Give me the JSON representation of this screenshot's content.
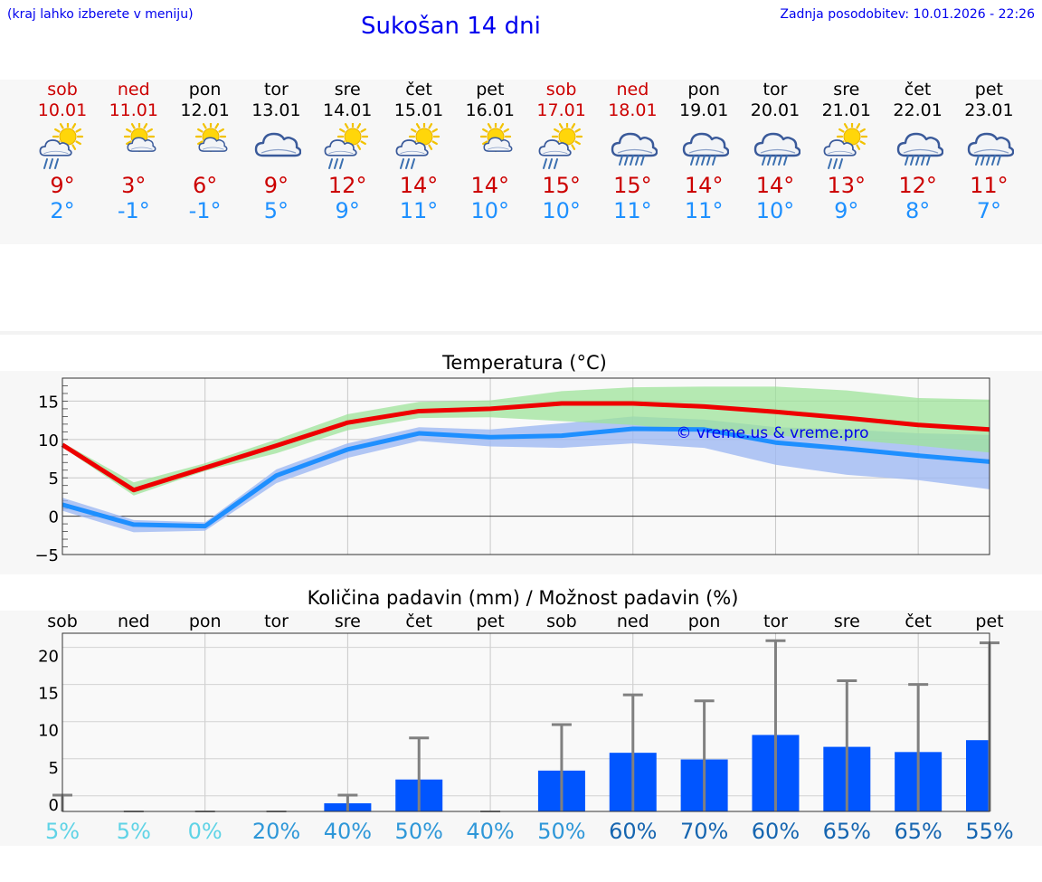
{
  "header": {
    "menu_hint": "(kraj lahko izberete v meniju)",
    "title": "Sukošan 14 dni",
    "updated": "Zadnja posodobitev: 10.01.2026 - 22:26"
  },
  "colors": {
    "max": "#cc0000",
    "min": "#1e90ff",
    "title": "#0000ee",
    "bar": "#0055ff"
  },
  "days": [
    {
      "name": "sob",
      "date": "10.01",
      "weekend": true,
      "icon": "sun-cloud-rain-icon",
      "max": "9°",
      "min": "2°"
    },
    {
      "name": "ned",
      "date": "11.01",
      "weekend": true,
      "icon": "sun-cloud-icon",
      "max": "3°",
      "min": "-1°"
    },
    {
      "name": "pon",
      "date": "12.01",
      "weekend": false,
      "icon": "sun-cloud-icon",
      "max": "6°",
      "min": "-1°"
    },
    {
      "name": "tor",
      "date": "13.01",
      "weekend": false,
      "icon": "cloud-icon",
      "max": "9°",
      "min": "5°"
    },
    {
      "name": "sre",
      "date": "14.01",
      "weekend": false,
      "icon": "sun-cloud-rain-icon",
      "max": "12°",
      "min": "9°"
    },
    {
      "name": "čet",
      "date": "15.01",
      "weekend": false,
      "icon": "sun-cloud-rain-icon",
      "max": "14°",
      "min": "11°"
    },
    {
      "name": "pet",
      "date": "16.01",
      "weekend": false,
      "icon": "sun-cloud-icon",
      "max": "14°",
      "min": "10°"
    },
    {
      "name": "sob",
      "date": "17.01",
      "weekend": true,
      "icon": "sun-cloud-rain-icon",
      "max": "15°",
      "min": "10°"
    },
    {
      "name": "ned",
      "date": "18.01",
      "weekend": true,
      "icon": "cloud-rain-icon",
      "max": "15°",
      "min": "11°"
    },
    {
      "name": "pon",
      "date": "19.01",
      "weekend": false,
      "icon": "cloud-rain-icon",
      "max": "14°",
      "min": "11°"
    },
    {
      "name": "tor",
      "date": "20.01",
      "weekend": false,
      "icon": "cloud-rain-icon",
      "max": "14°",
      "min": "10°"
    },
    {
      "name": "sre",
      "date": "21.01",
      "weekend": false,
      "icon": "sun-cloud-rain-icon",
      "max": "13°",
      "min": "9°"
    },
    {
      "name": "čet",
      "date": "22.01",
      "weekend": false,
      "icon": "cloud-rain-icon",
      "max": "12°",
      "min": "8°"
    },
    {
      "name": "pet",
      "date": "23.01",
      "weekend": false,
      "icon": "cloud-rain-icon",
      "max": "11°",
      "min": "7°"
    }
  ],
  "chart_data": [
    {
      "type": "line",
      "title": "Temperatura (°C)",
      "watermark": "© vreme.us & vreme.pro",
      "x": [
        0,
        1,
        2,
        3,
        4,
        5,
        6,
        7,
        8,
        9,
        10,
        11,
        12,
        13
      ],
      "ylim": [
        -5,
        18
      ],
      "yticks": [
        -5,
        0,
        5,
        10,
        15
      ],
      "series": [
        {
          "name": "max",
          "color": "#ee0000",
          "values": [
            9.3,
            3.4,
            6.3,
            9.2,
            12.2,
            13.7,
            14.0,
            14.7,
            14.7,
            14.3,
            13.6,
            12.8,
            11.9,
            11.3
          ],
          "band_low": [
            9.0,
            2.7,
            5.9,
            8.2,
            11.2,
            12.8,
            12.9,
            12.4,
            11.9,
            11.0,
            10.5,
            10.0,
            9.2,
            8.3
          ],
          "band_high": [
            9.6,
            4.4,
            6.9,
            10.0,
            13.3,
            14.9,
            15.1,
            16.3,
            16.8,
            16.9,
            16.9,
            16.4,
            15.4,
            15.2
          ]
        },
        {
          "name": "min",
          "color": "#1e8fff",
          "values": [
            1.5,
            -1.1,
            -1.3,
            5.3,
            8.7,
            10.8,
            10.3,
            10.5,
            11.4,
            11.3,
            9.6,
            8.8,
            7.9,
            7.1
          ],
          "band_low": [
            0.7,
            -2.1,
            -1.9,
            4.3,
            7.6,
            9.8,
            9.1,
            8.9,
            9.5,
            8.9,
            6.7,
            5.4,
            4.7,
            3.5
          ],
          "band_high": [
            2.4,
            -0.5,
            -0.8,
            6.1,
            9.5,
            11.6,
            11.3,
            12.1,
            13.0,
            12.6,
            11.6,
            11.3,
            10.8,
            10.6
          ]
        }
      ]
    },
    {
      "type": "bar",
      "title": "Količina padavin (mm) / Možnost padavin (%)",
      "categories": [
        "sob",
        "ned",
        "pon",
        "tor",
        "sre",
        "čet",
        "pet",
        "sob",
        "ned",
        "pon",
        "tor",
        "sre",
        "čet",
        "pet"
      ],
      "ylim": [
        -1,
        23
      ],
      "yticks": [
        0,
        5,
        10,
        15,
        20
      ],
      "values": [
        0,
        0,
        0,
        0,
        0.1,
        3.3,
        0,
        4.5,
        6.9,
        6.0,
        9.3,
        7.7,
        7.0,
        8.6
      ],
      "error_max": [
        1.2,
        0,
        0,
        0,
        1.2,
        8.9,
        0,
        10.7,
        14.7,
        13.9,
        22.0,
        16.6,
        16.1,
        21.7
      ],
      "probability": [
        "5%",
        "5%",
        "0%",
        "20%",
        "40%",
        "50%",
        "40%",
        "50%",
        "60%",
        "70%",
        "60%",
        "65%",
        "65%",
        "55%"
      ],
      "probability_colors": [
        "#5fd3e6",
        "#5fd3e6",
        "#5fd3e6",
        "#2e97d8",
        "#2e97d8",
        "#2e97d8",
        "#2e97d8",
        "#2e97d8",
        "#1565b0",
        "#1565b0",
        "#1565b0",
        "#1565b0",
        "#1565b0",
        "#1565b0"
      ]
    }
  ]
}
